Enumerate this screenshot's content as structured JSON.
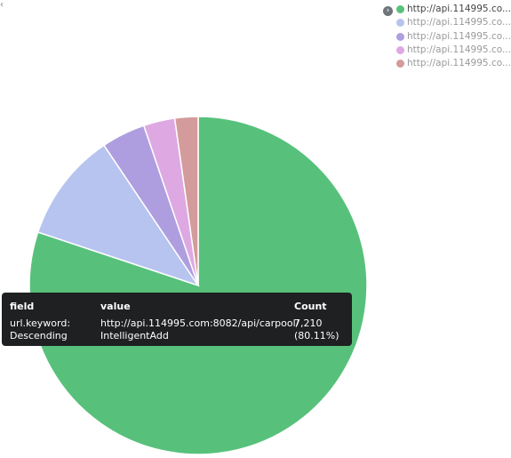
{
  "chart_data": {
    "type": "pie",
    "slices": [
      {
        "label": "http://api.114995.co...",
        "value": 7210,
        "color": "#57c17b"
      },
      {
        "label": "http://api.114995.co...",
        "value": 942,
        "color": "#b6c4ef"
      },
      {
        "label": "http://api.114995.co...",
        "value": 378,
        "color": "#af9edf"
      },
      {
        "label": "http://api.114995.co...",
        "value": 270,
        "color": "#dea8e2"
      },
      {
        "label": "http://api.114995.co...",
        "value": 200,
        "color": "#d39b9b"
      }
    ]
  },
  "tooltip": {
    "headers": {
      "field": "field",
      "value": "value",
      "count": "Count"
    },
    "field_line1": "url.keyword:",
    "field_line2": "Descending",
    "value_line1": "http://api.114995.com:8082/api/carpool/",
    "value_line2": "IntelligentAdd",
    "count_line1": "7,210",
    "count_line2": "(80.11%)"
  },
  "icons": {
    "legend_toggle": "chevron-right-icon",
    "top_left": "chevron-left-icon"
  }
}
